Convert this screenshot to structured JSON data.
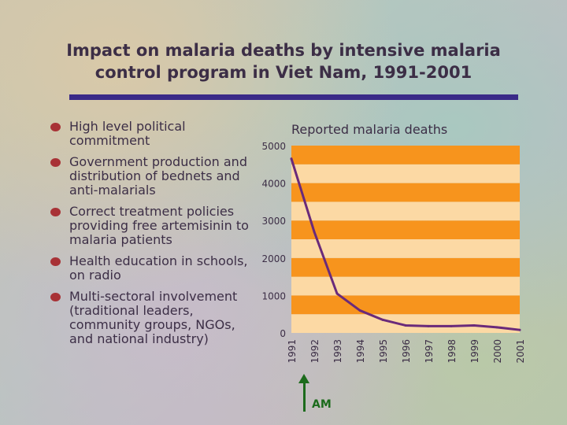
{
  "title_line1": "Impact on malaria deaths by intensive malaria",
  "title_line2": "control program in Viet Nam, 1991-2001",
  "bullets": [
    "High level political commitment",
    "Government production and distribution of bednets and anti-malarials",
    "Correct treatment policies providing free artemisinin to malaria patients",
    "Health education in schools, on radio",
    "Multi-sectoral involvement (traditional leaders, community groups, NGOs, and national industry)"
  ],
  "annotation": "AM",
  "colors": {
    "band_dark": "#f7941d",
    "band_light": "#fcd9a4",
    "line": "#6a2a7a",
    "bullet": "#a83236",
    "rule": "#3a2a88",
    "arrow": "#1c6b1c"
  },
  "chart_data": {
    "type": "line",
    "title": "Reported malaria deaths",
    "categories": [
      "1991",
      "1992",
      "1993",
      "1994",
      "1995",
      "1996",
      "1997",
      "1998",
      "1999",
      "2000",
      "2001"
    ],
    "values": [
      4650,
      2700,
      1050,
      600,
      350,
      200,
      180,
      180,
      200,
      150,
      80
    ],
    "yticks": [
      "0",
      "1000",
      "2000",
      "3000",
      "4000",
      "5000"
    ],
    "ylim": [
      0,
      5000
    ],
    "xlabel": "",
    "ylabel": ""
  }
}
